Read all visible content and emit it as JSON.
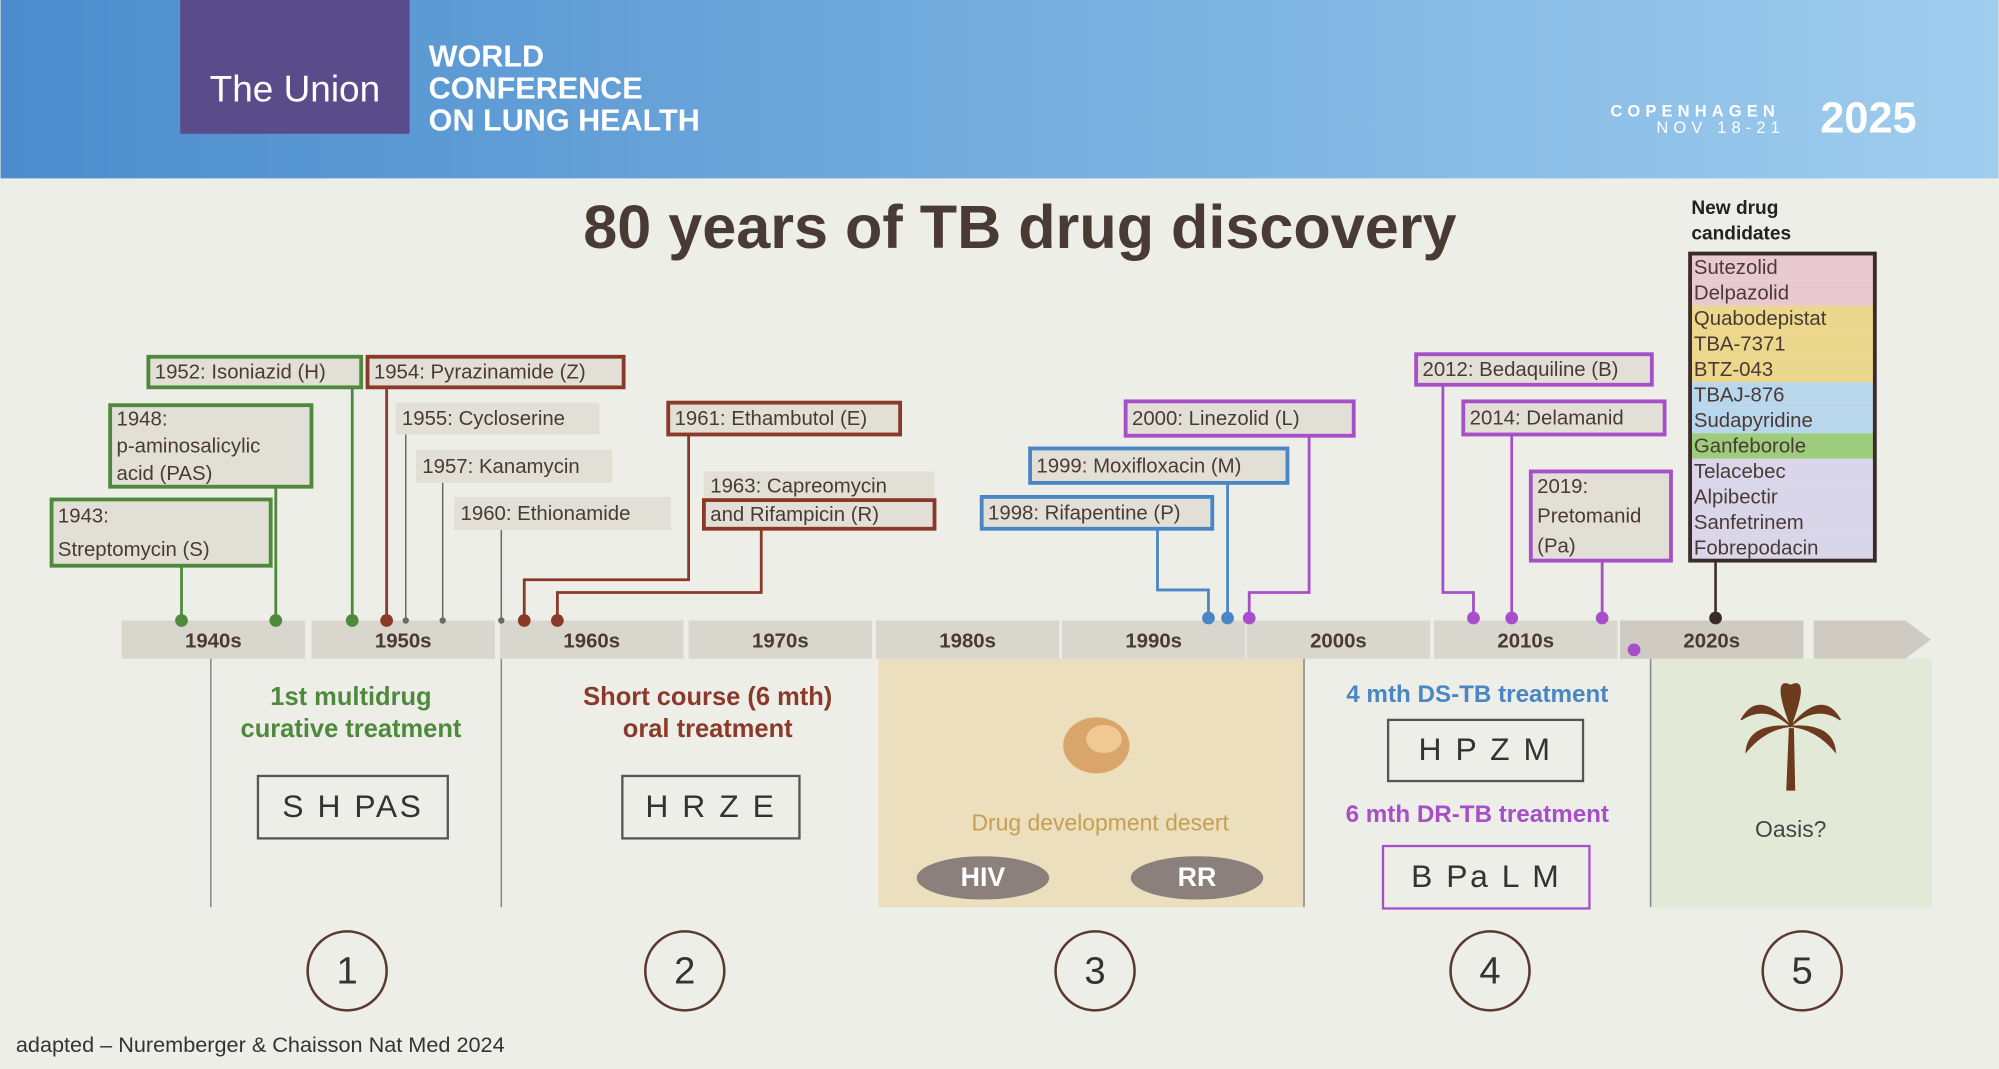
{
  "header": {
    "organization": "The Union",
    "conference": [
      "WORLD",
      "CONFERENCE",
      "ON LUNG HEALTH"
    ],
    "city": "COPENHAGEN",
    "dates": "NOV 18-21",
    "year": "2025"
  },
  "title": "80 years of TB drug discovery",
  "decades": [
    "1940s",
    "1950s",
    "1960s",
    "1970s",
    "1980s",
    "1990s",
    "2000s",
    "2010s",
    "2020s"
  ],
  "drugs": [
    {
      "lines": [
        "1943:",
        "Streptomycin (S)"
      ]
    },
    {
      "lines": [
        "1948:",
        "p-aminosalicylic",
        "acid (PAS)"
      ]
    },
    {
      "lines": [
        "1952: Isoniazid (H)"
      ]
    },
    {
      "lines": [
        "1954: Pyrazinamide (Z)"
      ]
    },
    {
      "lines": [
        "1955: Cycloserine"
      ]
    },
    {
      "lines": [
        "1957: Kanamycin"
      ]
    },
    {
      "lines": [
        "1960: Ethionamide"
      ]
    },
    {
      "lines": [
        "1961: Ethambutol (E)"
      ]
    },
    {
      "lines": [
        "1963: Capreomycin",
        "and Rifampicin (R)"
      ]
    },
    {
      "lines": [
        "1998: Rifapentine (P)"
      ]
    },
    {
      "lines": [
        "1999: Moxifloxacin (M)"
      ]
    },
    {
      "lines": [
        "2000: Linezolid (L)"
      ]
    },
    {
      "lines": [
        "2012: Bedaquiline (B)"
      ]
    },
    {
      "lines": [
        "2014: Delamanid"
      ]
    },
    {
      "lines": [
        "2019:",
        "Pretomanid",
        "(Pa)"
      ]
    }
  ],
  "candidates": {
    "heading": [
      "New drug",
      "candidates"
    ],
    "items": [
      "Sutezolid",
      "Delpazolid",
      "Quabodepistat",
      "TBA-7371",
      "BTZ-043",
      "TBAJ-876",
      "Sudapyridine",
      "Ganfeborole",
      "Telacebec",
      "Alpibectir",
      "Sanfetrinem",
      "Fobrepodacin"
    ]
  },
  "eras": [
    {
      "number": "1",
      "heading": [
        "1st multidrug",
        "curative treatment"
      ],
      "regimen": "S H PAS"
    },
    {
      "number": "2",
      "heading": [
        "Short course (6 mth)",
        "oral treatment"
      ],
      "regimen": "H R Z E"
    },
    {
      "number": "3",
      "caption": "Drug development desert",
      "tags": [
        "HIV",
        "RR"
      ]
    },
    {
      "number": "4",
      "ds_heading": "4 mth DS-TB treatment",
      "ds_regimen": "H P Z M",
      "dr_heading": "6 mth DR-TB treatment",
      "dr_regimen": "B Pa L M"
    },
    {
      "number": "5",
      "caption": "Oasis?"
    }
  ],
  "footer": "adapted – Nuremberger & Chaisson Nat Med 2024"
}
